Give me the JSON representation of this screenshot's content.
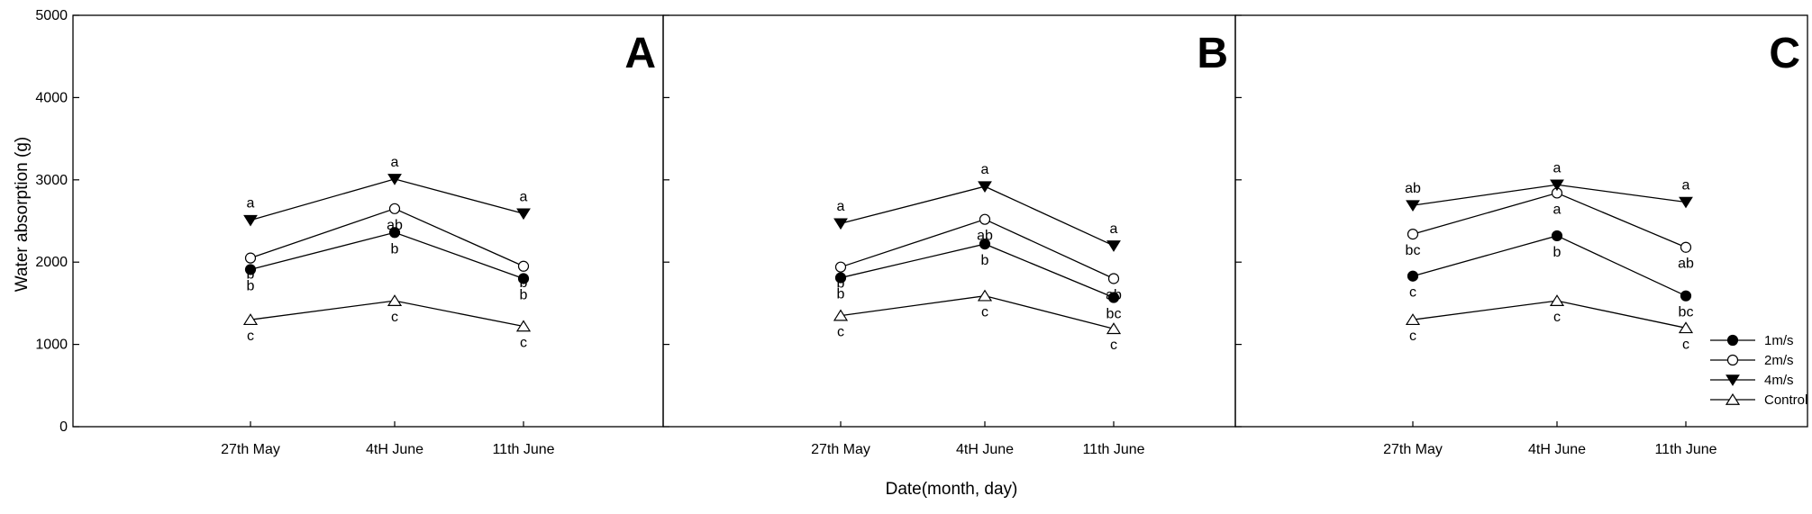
{
  "chart_data": {
    "type": "line",
    "xlabel": "Date(month, day)",
    "ylabel": "Water absorption (g)",
    "ylim": [
      0,
      5000
    ],
    "yticks": [
      0,
      1000,
      2000,
      3000,
      4000,
      5000
    ],
    "categories": [
      "27th May",
      "4tH June",
      "11th June"
    ],
    "grid": false,
    "legend_placement": "bottom-right of panel C",
    "series_styles": [
      {
        "name": "1m/s",
        "marker": "filled-circle"
      },
      {
        "name": "2m/s",
        "marker": "open-circle"
      },
      {
        "name": "4m/s",
        "marker": "filled-triangle-down"
      },
      {
        "name": "Control",
        "marker": "open-triangle-up"
      }
    ],
    "panels": [
      {
        "label": "A",
        "series": [
          {
            "name": "1m/s",
            "values": [
              1910,
              2360,
              1800
            ],
            "letters": [
              "b",
              "b",
              "b"
            ]
          },
          {
            "name": "2m/s",
            "values": [
              2050,
              2650,
              1950
            ],
            "letters": [
              "b",
              "ab",
              "b"
            ]
          },
          {
            "name": "4m/s",
            "values": [
              2510,
              3010,
              2590
            ],
            "letters": [
              "a",
              "a",
              "a"
            ]
          },
          {
            "name": "Control",
            "values": [
              1300,
              1530,
              1220
            ],
            "letters": [
              "c",
              "c",
              "c"
            ]
          }
        ]
      },
      {
        "label": "B",
        "series": [
          {
            "name": "1m/s",
            "values": [
              1810,
              2220,
              1570
            ],
            "letters": [
              "b",
              "b",
              "bc"
            ]
          },
          {
            "name": "2m/s",
            "values": [
              1940,
              2520,
              1800
            ],
            "letters": [
              "b",
              "ab",
              "ab"
            ]
          },
          {
            "name": "4m/s",
            "values": [
              2470,
              2920,
              2200
            ],
            "letters": [
              "a",
              "a",
              "a"
            ]
          },
          {
            "name": "Control",
            "values": [
              1350,
              1590,
              1190
            ],
            "letters": [
              "c",
              "c",
              "c"
            ]
          }
        ]
      },
      {
        "label": "C",
        "series": [
          {
            "name": "1m/s",
            "values": [
              1830,
              2320,
              1590
            ],
            "letters": [
              "c",
              "b",
              "bc"
            ]
          },
          {
            "name": "2m/s",
            "values": [
              2340,
              2840,
              2180
            ],
            "letters": [
              "bc",
              "a",
              "ab"
            ]
          },
          {
            "name": "4m/s",
            "values": [
              2690,
              2940,
              2730
            ],
            "letters": [
              "ab",
              "a",
              "a"
            ]
          },
          {
            "name": "Control",
            "values": [
              1300,
              1530,
              1200
            ],
            "letters": [
              "c",
              "c",
              "c"
            ]
          }
        ]
      }
    ]
  }
}
